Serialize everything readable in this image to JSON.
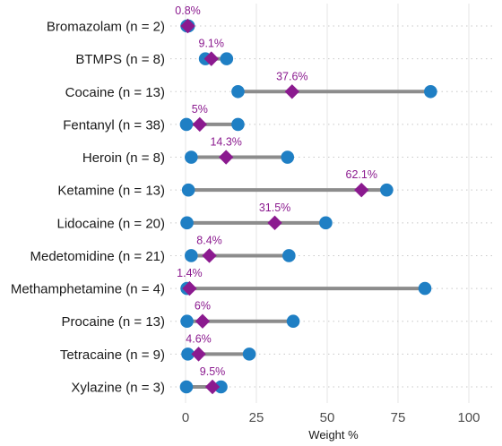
{
  "chart_data": {
    "type": "dumbbell",
    "xlabel": "Weight %",
    "xlim": [
      0,
      100
    ],
    "xticks": [
      0,
      25,
      50,
      75,
      100
    ],
    "grid": "vertical major; dotted horizontal per category",
    "colors": {
      "range_line": "#8c8c8c",
      "endpoint": "#1f7fc4",
      "median": "#8b1a8f",
      "median_label": "#8b1a8f",
      "grid": "#e6e6e6",
      "row_grid": "#c8c8c8"
    },
    "series_keys": {
      "min": "min",
      "max": "max",
      "median": "median"
    },
    "categories": [
      {
        "label": "Bromazolam (n = 2)",
        "min": 0.5,
        "max": 1.0,
        "median": 0.8,
        "median_label": "0.8%"
      },
      {
        "label": "BTMPS (n = 8)",
        "min": 7.0,
        "max": 14.5,
        "median": 9.1,
        "median_label": "9.1%"
      },
      {
        "label": "Cocaine (n = 13)",
        "min": 18.5,
        "max": 86.5,
        "median": 37.6,
        "median_label": "37.6%"
      },
      {
        "label": "Fentanyl (n = 38)",
        "min": 0.3,
        "max": 18.5,
        "median": 5.0,
        "median_label": "5%"
      },
      {
        "label": "Heroin (n = 8)",
        "min": 2.0,
        "max": 36.0,
        "median": 14.3,
        "median_label": "14.3%"
      },
      {
        "label": "Ketamine (n = 13)",
        "min": 1.0,
        "max": 71.0,
        "median": 62.1,
        "median_label": "62.1%"
      },
      {
        "label": "Lidocaine (n = 20)",
        "min": 0.5,
        "max": 49.5,
        "median": 31.5,
        "median_label": "31.5%"
      },
      {
        "label": "Medetomidine (n = 21)",
        "min": 2.0,
        "max": 36.5,
        "median": 8.4,
        "median_label": "8.4%"
      },
      {
        "label": "Methamphetamine (n = 4)",
        "min": 0.5,
        "max": 84.5,
        "median": 1.4,
        "median_label": "1.4%"
      },
      {
        "label": "Procaine (n = 13)",
        "min": 0.5,
        "max": 38.0,
        "median": 6.0,
        "median_label": "6%"
      },
      {
        "label": "Tetracaine (n = 9)",
        "min": 0.8,
        "max": 22.5,
        "median": 4.6,
        "median_label": "4.6%"
      },
      {
        "label": "Xylazine (n = 3)",
        "min": 0.3,
        "max": 12.5,
        "median": 9.5,
        "median_label": "9.5%"
      }
    ]
  }
}
